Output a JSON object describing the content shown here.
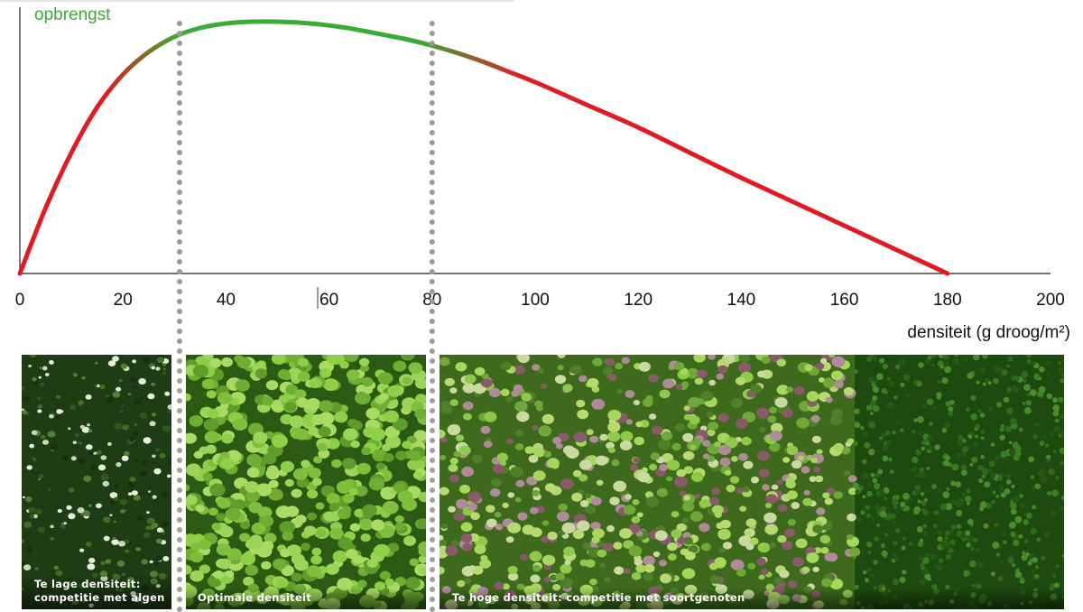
{
  "chart_data": {
    "type": "line",
    "ylabel": "opbrengst",
    "xlabel": "densiteit (g droog/m²)",
    "xlim": [
      0,
      200
    ],
    "x_ticks": [
      "0",
      "20",
      "40",
      "60",
      "80",
      "100",
      "120",
      "140",
      "160",
      "180",
      "200"
    ],
    "grid": false,
    "series": [
      {
        "x": [
          0,
          5,
          10,
          15,
          20,
          25,
          30,
          35,
          40,
          45,
          50,
          55,
          60,
          65,
          70,
          75,
          80,
          85,
          90,
          95,
          100,
          110,
          120,
          130,
          140,
          150,
          160,
          170,
          180
        ],
        "y": [
          0,
          0.26,
          0.48,
          0.66,
          0.79,
          0.88,
          0.94,
          0.975,
          0.993,
          1.0,
          1.0,
          0.995,
          0.985,
          0.97,
          0.95,
          0.93,
          0.905,
          0.875,
          0.84,
          0.8,
          0.76,
          0.67,
          0.58,
          0.48,
          0.38,
          0.285,
          0.19,
          0.095,
          0.0
        ]
      }
    ],
    "annotations": [
      {
        "type": "vline",
        "x": 31
      },
      {
        "type": "vline",
        "x": 80
      }
    ],
    "regions": [
      {
        "label": "Te lage densiteit: competitie met algen",
        "line1": "Te lage densiteit:",
        "line2": "competitie met algen",
        "color": "#e01b22",
        "from": 0,
        "to": 31
      },
      {
        "label": "Optimale densiteit",
        "color": "#3aab35",
        "from": 31,
        "to": 80
      },
      {
        "label": "Te hoge densiteit: competitie met soortgenoten",
        "color": "#e01b22",
        "from": 80,
        "to": 180
      }
    ]
  },
  "colors": {
    "optimal": "#3aab35",
    "suboptimal": "#e01b22",
    "axis": "#222222",
    "guide": "#9a9a9a"
  }
}
